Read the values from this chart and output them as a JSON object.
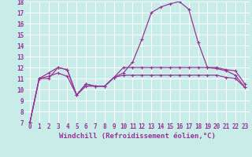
{
  "xlabel": "Windchill (Refroidissement éolien,°C)",
  "background_color": "#c8ede8",
  "grid_color": "#ffffff",
  "line_color": "#993399",
  "x": [
    0,
    1,
    2,
    3,
    4,
    5,
    6,
    7,
    8,
    9,
    10,
    11,
    12,
    13,
    14,
    15,
    16,
    17,
    18,
    19,
    20,
    21,
    22,
    23
  ],
  "line_peak": [
    7.0,
    11.0,
    11.0,
    12.0,
    11.8,
    9.5,
    10.5,
    10.3,
    10.3,
    11.1,
    11.5,
    12.5,
    14.6,
    17.0,
    17.5,
    17.8,
    18.0,
    17.3,
    14.3,
    12.0,
    11.9,
    11.7,
    11.3,
    10.2
  ],
  "line_high": [
    7.0,
    11.0,
    11.5,
    12.0,
    11.8,
    9.5,
    10.5,
    10.3,
    10.3,
    11.1,
    12.0,
    12.0,
    12.0,
    12.0,
    12.0,
    12.0,
    12.0,
    12.0,
    12.0,
    12.0,
    12.0,
    11.8,
    11.7,
    10.5
  ],
  "line_low": [
    7.0,
    11.0,
    11.2,
    11.5,
    11.2,
    9.5,
    10.3,
    10.3,
    10.3,
    11.1,
    11.3,
    11.3,
    11.3,
    11.3,
    11.3,
    11.3,
    11.3,
    11.3,
    11.3,
    11.3,
    11.3,
    11.1,
    11.0,
    10.2
  ],
  "ylim_min": 7,
  "ylim_max": 18,
  "yticks": [
    7,
    8,
    9,
    10,
    11,
    12,
    13,
    14,
    15,
    16,
    17,
    18
  ],
  "xticks": [
    0,
    1,
    2,
    3,
    4,
    5,
    6,
    7,
    8,
    9,
    10,
    11,
    12,
    13,
    14,
    15,
    16,
    17,
    18,
    19,
    20,
    21,
    22,
    23
  ],
  "tick_label_fontsize": 5.5,
  "xlabel_fontsize": 6.5,
  "linewidth": 0.9,
  "markersize": 2.5,
  "markeredgewidth": 0.8
}
